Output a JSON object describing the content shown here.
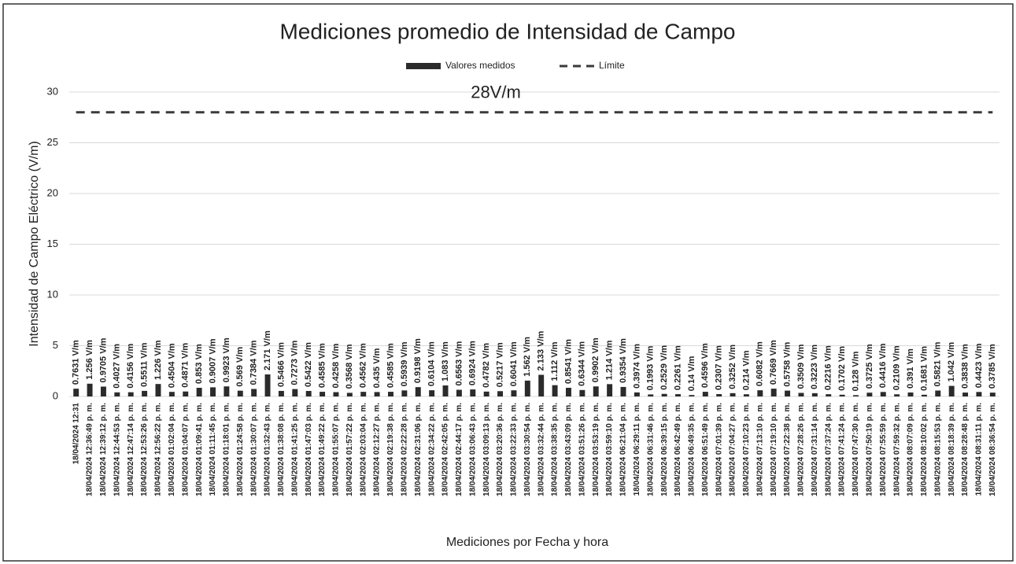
{
  "chart_data": {
    "type": "bar",
    "title": "Mediciones promedio de Intensidad de Campo",
    "x_label": "Mediciones por Fecha y hora",
    "y_label": "Intensidad de Campo Eléctrico (V/m)",
    "annotation": "28V/m",
    "categories": [
      "18/04/2024 12:31",
      "18/04/2024 12:36:49 p. m.",
      "18/04/2024 12:39:12 p. m.",
      "18/04/2024 12:44:53 p. m.",
      "18/04/2024 12:47:14 p. m.",
      "18/04/2024 12:53:26 p. m.",
      "18/04/2024 12:56:22 p. m.",
      "18/04/2024 01:02:04 p. m.",
      "18/04/2024 01:04:07 p. m.",
      "18/04/2024 01:09:41 p. m.",
      "18/04/2024 01:11:45 p. m.",
      "18/04/2024 01:18:01 p. m.",
      "18/04/2024 01:24:58 p. m.",
      "18/04/2024 01:30:07 p. m.",
      "18/04/2024 01:32:43 p. m.",
      "18/04/2024 01:38:08 p. m.",
      "18/04/2024 01:41:25 p. m.",
      "18/04/2024 01:47:03 p. m.",
      "18/04/2024 01:49:22 p. m.",
      "18/04/2024 01:55:07 p. m.",
      "18/04/2024 01:57:22 p. m.",
      "18/04/2024 02:03:04 p. m.",
      "18/04/2024 02:12:27 p. m.",
      "18/04/2024 02:19:38 p. m.",
      "18/04/2024 02:22:28 p. m.",
      "18/04/2024 02:31:06 p. m.",
      "18/04/2024 02:34:22 p. m.",
      "18/04/2024 02:42:05 p. m.",
      "18/04/2024 02:44:17 p. m.",
      "18/04/2024 03:06:43 p. m.",
      "18/04/2024 03:09:13 p. m.",
      "18/04/2024 03:20:36 p. m.",
      "18/04/2024 03:22:33 p. m.",
      "18/04/2024 03:30:54 p. m.",
      "18/04/2024 03:32:44 p. m.",
      "18/04/2024 03:38:35 p. m.",
      "18/04/2024 03:43:09 p. m.",
      "18/04/2024 03:51:26 p. m.",
      "18/04/2024 03:53:19 p. m.",
      "18/04/2024 03:59:10 p. m.",
      "18/04/2024 06:21:04 p. m.",
      "18/04/2024 06:29:11 p. m.",
      "18/04/2024 06:31:46 p. m.",
      "18/04/2024 06:39:15 p. m.",
      "18/04/2024 06:42:49 p. m.",
      "18/04/2024 06:49:35 p. m.",
      "18/04/2024 06:51:49 p. m.",
      "18/04/2024 07:01:39 p. m.",
      "18/04/2024 07:04:27 p. m.",
      "18/04/2024 07:10:23 p. m.",
      "18/04/2024 07:13:10 p. m.",
      "18/04/2024 07:19:10 p. m.",
      "18/04/2024 07:22:38 p. m.",
      "18/04/2024 07:28:26 p. m.",
      "18/04/2024 07:31:14 p. m.",
      "18/04/2024 07:37:24 p. m.",
      "18/04/2024 07:41:24 p. m.",
      "18/04/2024 07:47:30 p. m.",
      "18/04/2024 07:50:19 p. m.",
      "18/04/2024 07:55:59 p. m.",
      "18/04/2024 07:59:32 p. m.",
      "18/04/2024 08:07:09 p. m.",
      "18/04/2024 08:10:02 p. m.",
      "18/04/2024 08:15:53 p. m.",
      "18/04/2024 08:18:39 p. m.",
      "18/04/2024 08:28:48 p. m.",
      "18/04/2024 08:31:11 p. m.",
      "18/04/2024 08:36:54 p. m."
    ],
    "series": [
      {
        "name": "Valores medidos",
        "type": "bar",
        "color": "#2b2b2b",
        "values": [
          0.7631,
          1.256,
          0.9705,
          0.4027,
          0.4156,
          0.5511,
          1.226,
          0.4504,
          0.4871,
          0.853,
          0.9007,
          0.9923,
          0.569,
          0.7384,
          2.171,
          0.5466,
          0.7273,
          0.5422,
          0.4585,
          0.4258,
          0.3568,
          0.4562,
          0.435,
          0.4585,
          0.5939,
          0.9198,
          0.6104,
          1.083,
          0.6563,
          0.6924,
          0.4782,
          0.5217,
          0.6041,
          1.562,
          2.133,
          1.112,
          0.8541,
          0.6344,
          0.9902,
          1.214,
          0.9354,
          0.3974,
          0.1993,
          0.2529,
          0.2261,
          0.14,
          0.4596,
          0.2307,
          0.3252,
          0.214,
          0.6082,
          0.7669,
          0.5758,
          0.3509,
          0.3223,
          0.2216,
          0.1702,
          0.128,
          0.3725,
          0.4416,
          0.2109,
          0.391,
          0.1681,
          0.5821,
          1.042,
          0.3838,
          0.4423,
          0.3785
        ],
        "value_labels": [
          "0.7631 V/m",
          "1.256 V/m",
          "0.9705 V/m",
          "0.4027 V/m",
          "0.4156 V/m",
          "0.5511 V/m",
          "1.226 V/m",
          "0.4504 V/m",
          "0.4871 V/m",
          "0.853 V/m",
          "0.9007 V/m",
          "0.9923 V/m",
          "0.569 V/m",
          "0.7384 V/m",
          "2.171 V/m",
          "0.5466 V/m",
          "0.7273 V/m",
          "0.5422 V/m",
          "0.4585 V/m",
          "0.4258 V/m",
          "0.3568 V/m",
          "0.4562 V/m",
          "0.435 V/m",
          "0.4585 V/m",
          "0.5939 V/m",
          "0.9198 V/m",
          "0.6104 V/m",
          "1.083 V/m",
          "0.6563 V/m",
          "0.6924 V/m",
          "0.4782 V/m",
          "0.5217 V/m",
          "0.6041 V/m",
          "1.562 V/m",
          "2.133 V/m",
          "1.112 V/m",
          "0.8541 V/m",
          "0.6344 V/m",
          "0.9902 V/m",
          "1.214 V/m",
          "0.9354 V/m",
          "0.3974 V/m",
          "0.1993 V/m",
          "0.2529 V/m",
          "0.2261 V/m",
          "0.14 V/m",
          "0.4596 V/m",
          "0.2307 V/m",
          "0.3252 V/m",
          "0.214 V/m",
          "0.6082 V/m",
          "0.7669 V/m",
          "0.5758 V/m",
          "0.3509 V/m",
          "0.3223 V/m",
          "0.2216 V/m",
          "0.1702 V/m",
          "0.128 V/m",
          "0.3725 V/m",
          "0.4416 V/m",
          "0.2109 V/m",
          "0.391 V/m",
          "0.1681 V/m",
          "0.5821 V/m",
          "1.042 V/m",
          "0.3838 V/m",
          "0.4423 V/m",
          "0.3785 V/m"
        ]
      },
      {
        "name": "Límite",
        "type": "line",
        "dashed": true,
        "color": "#3a3a3a",
        "values": [
          28,
          28,
          28,
          28,
          28,
          28,
          28,
          28,
          28,
          28,
          28,
          28,
          28,
          28,
          28,
          28,
          28,
          28,
          28,
          28,
          28,
          28,
          28,
          28,
          28,
          28,
          28,
          28,
          28,
          28,
          28,
          28,
          28,
          28,
          28,
          28,
          28,
          28,
          28,
          28,
          28,
          28,
          28,
          28,
          28,
          28,
          28,
          28,
          28,
          28,
          28,
          28,
          28,
          28,
          28,
          28,
          28,
          28,
          28,
          28,
          28,
          28,
          28,
          28,
          28,
          28,
          28,
          28
        ]
      }
    ],
    "ylim": [
      0,
      30
    ],
    "yticks": [
      0,
      5,
      10,
      15,
      20,
      25,
      30
    ],
    "grid": true,
    "legend": "top"
  }
}
